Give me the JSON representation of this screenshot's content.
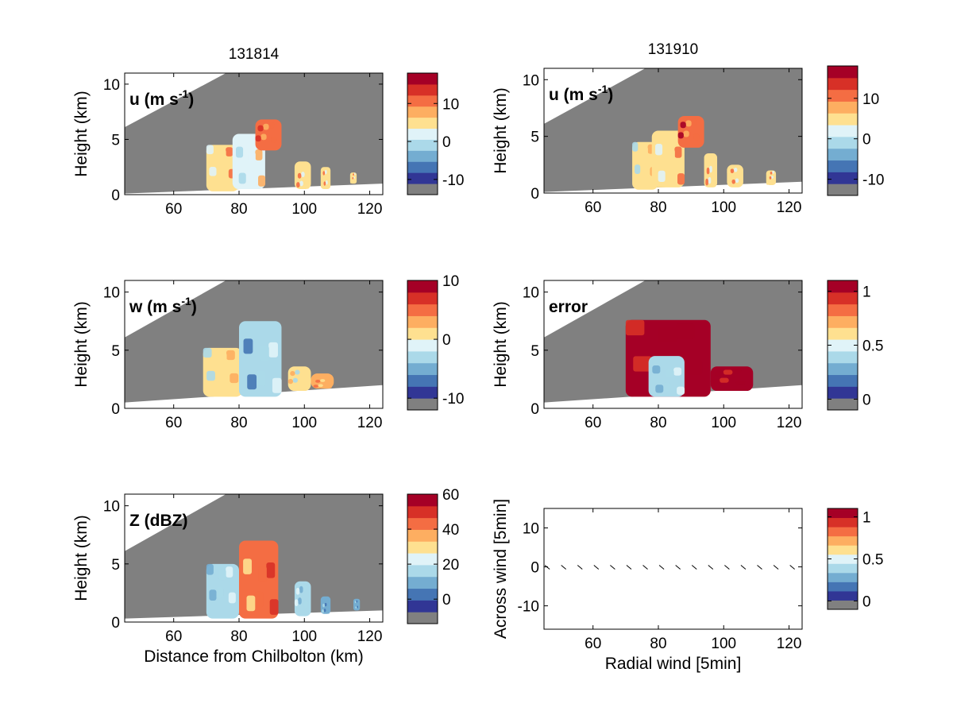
{
  "chart_data": [
    {
      "id": "u-131814",
      "type": "heatmap",
      "title": "131814",
      "panel_label": "u (m s",
      "panel_label_sup": "-1",
      "panel_label_end": ")",
      "xlabel": "",
      "ylabel": "Height (km)",
      "xlim": [
        45,
        124
      ],
      "ylim": [
        0,
        11
      ],
      "xticks": [
        60,
        80,
        100,
        120
      ],
      "yticks": [
        0,
        5,
        10
      ],
      "colorbar": {
        "vmin": -14,
        "vmax": 18,
        "ticks": [
          -10,
          0,
          10
        ]
      },
      "features": {
        "upper_edge": [
          [
            45,
            6.1
          ],
          [
            76,
            11
          ]
        ],
        "lower_edge": [
          [
            45,
            0.1
          ],
          [
            124,
            1.0
          ]
        ],
        "blobs": [
          {
            "x": [
              70,
              80
            ],
            "y": [
              0.3,
              4.5
            ],
            "v": 6
          },
          {
            "x": [
              78,
              88
            ],
            "y": [
              0.5,
              5.5
            ],
            "v": 3
          },
          {
            "x": [
              85,
              93
            ],
            "y": [
              4,
              6.8
            ],
            "v": 11
          },
          {
            "x": [
              97,
              102
            ],
            "y": [
              0.5,
              3
            ],
            "v": 6
          },
          {
            "x": [
              105,
              108
            ],
            "y": [
              0.5,
              2.5
            ],
            "v": 6
          },
          {
            "x": [
              114,
              116
            ],
            "y": [
              1,
              2
            ],
            "v": 6
          }
        ]
      }
    },
    {
      "id": "u-131910",
      "type": "heatmap",
      "title": "131910",
      "panel_label": "u (m s",
      "panel_label_sup": "-1",
      "panel_label_end": ")",
      "xlabel": "",
      "ylabel": "Height (km)",
      "xlim": [
        45,
        124
      ],
      "ylim": [
        0,
        11
      ],
      "xticks": [
        60,
        80,
        100,
        120
      ],
      "yticks": [
        0,
        5,
        10
      ],
      "colorbar": {
        "vmin": -14,
        "vmax": 18,
        "ticks": [
          -10,
          0,
          10
        ]
      },
      "features": {
        "upper_edge": [
          [
            45,
            6.1
          ],
          [
            76,
            11
          ]
        ],
        "lower_edge": [
          [
            45,
            0.1
          ],
          [
            124,
            1.0
          ]
        ],
        "blobs": [
          {
            "x": [
              72,
              80
            ],
            "y": [
              0.3,
              4.5
            ],
            "v": 4
          },
          {
            "x": [
              78,
              88
            ],
            "y": [
              0.5,
              5.5
            ],
            "v": 6
          },
          {
            "x": [
              86,
              94
            ],
            "y": [
              4,
              6.8
            ],
            "v": 12
          },
          {
            "x": [
              94,
              98
            ],
            "y": [
              0.5,
              3.5
            ],
            "v": 6
          },
          {
            "x": [
              101,
              106
            ],
            "y": [
              0.5,
              2.5
            ],
            "v": 6
          },
          {
            "x": [
              113,
              116
            ],
            "y": [
              0.7,
              2
            ],
            "v": 6
          }
        ]
      }
    },
    {
      "id": "w-131814",
      "type": "heatmap",
      "title": "",
      "panel_label": "w (m s",
      "panel_label_sup": "-1",
      "panel_label_end": ")",
      "xlabel": "",
      "ylabel": "Height (km)",
      "xlim": [
        45,
        124
      ],
      "ylim": [
        0,
        11
      ],
      "xticks": [
        60,
        80,
        100,
        120
      ],
      "yticks": [
        0,
        5,
        10
      ],
      "colorbar": {
        "vmin": -12,
        "vmax": 10,
        "ticks": [
          -10,
          0,
          10
        ]
      },
      "features": {
        "upper_edge": [
          [
            45,
            6.1
          ],
          [
            76,
            11
          ]
        ],
        "lower_edge": [
          [
            45,
            0.5
          ],
          [
            124,
            2.0
          ]
        ],
        "blobs": [
          {
            "x": [
              69,
              81
            ],
            "y": [
              1.0,
              5.2
            ],
            "v": 0
          },
          {
            "x": [
              80,
              93
            ],
            "y": [
              1.0,
              7.5
            ],
            "v": -4
          },
          {
            "x": [
              95,
              102
            ],
            "y": [
              1.5,
              3.6
            ],
            "v": 0
          },
          {
            "x": [
              102,
              109
            ],
            "y": [
              1.7,
              3.0
            ],
            "v": 3
          }
        ]
      }
    },
    {
      "id": "error-131910",
      "type": "heatmap",
      "title": "",
      "panel_label": "error",
      "panel_label_sup": "",
      "panel_label_end": "",
      "xlabel": "",
      "ylabel": "Height (km)",
      "xlim": [
        45,
        124
      ],
      "ylim": [
        0,
        11
      ],
      "xticks": [
        60,
        80,
        100,
        120
      ],
      "yticks": [
        0,
        5,
        10
      ],
      "colorbar": {
        "vmin": -0.1,
        "vmax": 1.1,
        "ticks": [
          0,
          0.5,
          1
        ]
      },
      "features": {
        "upper_edge": [
          [
            45,
            6.1
          ],
          [
            76,
            11
          ]
        ],
        "lower_edge": [
          [
            45,
            0.5
          ],
          [
            124,
            2.0
          ]
        ],
        "blobs": [
          {
            "x": [
              70,
              96
            ],
            "y": [
              1.0,
              7.6
            ],
            "v": 1.05
          },
          {
            "x": [
              77,
              88
            ],
            "y": [
              1.0,
              4.5
            ],
            "v": 0.4
          },
          {
            "x": [
              96,
              109
            ],
            "y": [
              1.5,
              3.6
            ],
            "v": 1.05
          }
        ]
      }
    },
    {
      "id": "z-131814",
      "type": "heatmap",
      "title": "",
      "panel_label": "Z (dBZ)",
      "panel_label_sup": "",
      "panel_label_end": "",
      "xlabel": "Distance from Chilbolton (km)",
      "ylabel": "Height (km)",
      "xlim": [
        45,
        124
      ],
      "ylim": [
        0,
        11
      ],
      "xticks": [
        60,
        80,
        100,
        120
      ],
      "yticks": [
        0,
        5,
        10
      ],
      "colorbar": {
        "vmin": -14,
        "vmax": 60,
        "ticks": [
          0,
          20,
          40,
          60
        ]
      },
      "features": {
        "upper_edge": [
          [
            45,
            6.1
          ],
          [
            76,
            11
          ]
        ],
        "lower_edge": [
          [
            45,
            0.3
          ],
          [
            124,
            1.0
          ]
        ],
        "blobs": [
          {
            "x": [
              70,
              80
            ],
            "y": [
              0.3,
              5.0
            ],
            "v": 15
          },
          {
            "x": [
              80,
              92
            ],
            "y": [
              0.3,
              7.0
            ],
            "v": 40
          },
          {
            "x": [
              97,
              102
            ],
            "y": [
              0.5,
              3.5
            ],
            "v": 15
          },
          {
            "x": [
              105,
              108
            ],
            "y": [
              0.7,
              2.2
            ],
            "v": 10
          },
          {
            "x": [
              115,
              117
            ],
            "y": [
              1,
              2
            ],
            "v": 10
          }
        ]
      }
    },
    {
      "id": "wind-vectors",
      "type": "scatter",
      "title": "",
      "panel_label": "",
      "panel_label_sup": "",
      "panel_label_end": "",
      "xlabel": "Radial wind [5min]",
      "ylabel": "Across wind [5min]",
      "xlim": [
        45,
        124
      ],
      "ylim": [
        -16,
        15
      ],
      "xticks": [
        60,
        80,
        100,
        120
      ],
      "yticks": [
        -10,
        0,
        10
      ],
      "colorbar": {
        "vmin": -0.1,
        "vmax": 1.1,
        "ticks": [
          0,
          0.5,
          1
        ]
      },
      "vectors_x": [
        46,
        51,
        56,
        61,
        66,
        71,
        76,
        81,
        86,
        91,
        96,
        101,
        106,
        111,
        116,
        121
      ],
      "vectors_y": [
        0,
        0,
        0,
        0,
        0,
        0,
        0,
        0,
        0,
        0,
        0,
        0,
        0,
        0,
        0,
        0
      ]
    }
  ],
  "colormap": {
    "under": "#808080",
    "colors": [
      "#313695",
      "#4575b4",
      "#74add1",
      "#abd9e9",
      "#e0f3f8",
      "#fee090",
      "#fdae61",
      "#f46d43",
      "#d73027",
      "#a50026"
    ]
  }
}
